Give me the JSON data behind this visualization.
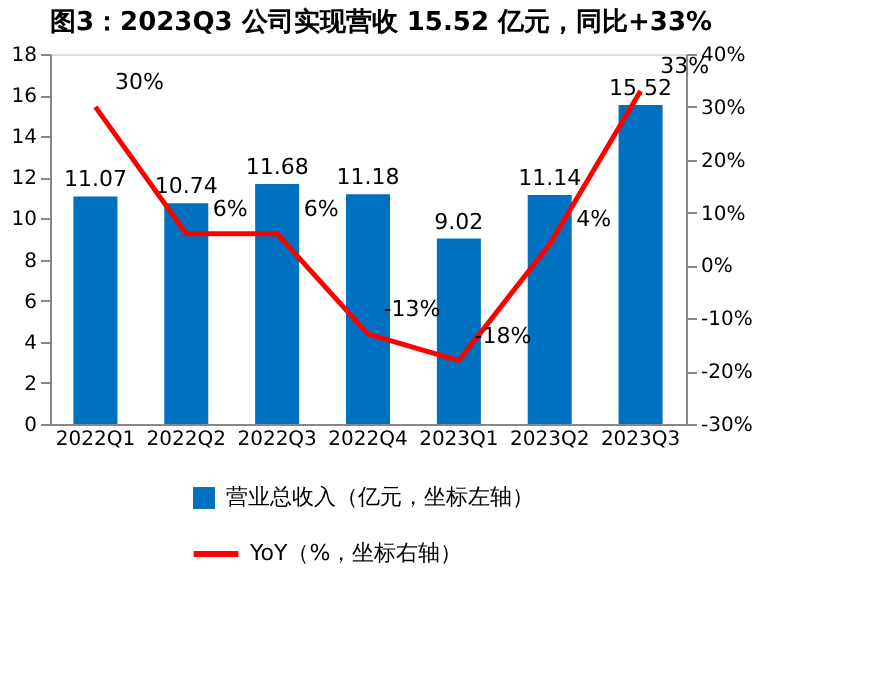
{
  "chart_data": {
    "type": "bar",
    "title": "图3：2023Q3 公司实现营收 15.52 亿元，同比+33%",
    "categories": [
      "2022Q1",
      "2022Q2",
      "2022Q3",
      "2022Q4",
      "2023Q1",
      "2023Q2",
      "2023Q3"
    ],
    "series": [
      {
        "name": "营业总收入（亿元，坐标左轴）",
        "color": "#0070c0",
        "values": [
          11.07,
          10.74,
          11.68,
          11.18,
          9.02,
          11.14,
          15.52
        ],
        "value_labels": [
          "11.07",
          "10.74",
          "11.68",
          "11.18",
          "9.02",
          "11.14",
          "15.52"
        ]
      },
      {
        "name": "YoY（%，坐标右轴）",
        "type": "line",
        "axis": "y2",
        "color": "#ff0000",
        "values": [
          30,
          6,
          6,
          -13,
          -18,
          4,
          33
        ],
        "value_labels": [
          "30%",
          "6%",
          "6%",
          "-13%",
          "-18%",
          "4%",
          "33%"
        ]
      }
    ],
    "ylim": [
      0,
      18
    ],
    "yticks": [
      0,
      2,
      4,
      6,
      8,
      10,
      12,
      14,
      16,
      18
    ],
    "y2lim": [
      -30,
      40
    ],
    "y2ticks": [
      {
        "value": -30,
        "label": "-30%"
      },
      {
        "value": -20,
        "label": "-20%"
      },
      {
        "value": -10,
        "label": "-10%"
      },
      {
        "value": 0,
        "label": "0%"
      },
      {
        "value": 10,
        "label": "10%"
      },
      {
        "value": 20,
        "label": "20%"
      },
      {
        "value": 30,
        "label": "30%"
      },
      {
        "value": 40,
        "label": "40%"
      }
    ],
    "grid": false,
    "legend": "bottom",
    "marker": "none",
    "line_style": "solid"
  }
}
